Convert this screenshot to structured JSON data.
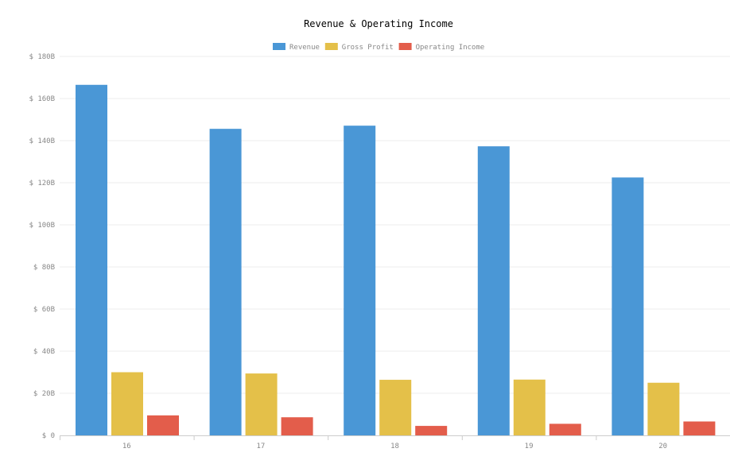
{
  "chart_data": {
    "type": "bar",
    "title": "Revenue & Operating Income",
    "categories": [
      "16",
      "17",
      "18",
      "19",
      "20"
    ],
    "series": [
      {
        "name": "Revenue",
        "color": "#4a97d6",
        "values": [
          166.5,
          145.6,
          147.1,
          137.3,
          122.5
        ]
      },
      {
        "name": "Gross Profit",
        "color": "#e4c049",
        "values": [
          30.0,
          29.4,
          26.4,
          26.5,
          25.0
        ]
      },
      {
        "name": "Operating Income",
        "color": "#e35d4b",
        "values": [
          9.5,
          8.6,
          4.5,
          5.5,
          6.6
        ]
      }
    ],
    "y_ticks": [
      "$ 0",
      "$ 20B",
      "$ 40B",
      "$ 60B",
      "$ 80B",
      "$ 100B",
      "$ 120B",
      "$ 140B",
      "$ 160B",
      "$ 180B"
    ],
    "ylim": [
      0,
      180
    ],
    "ytick_step": 20,
    "xlabel": "",
    "ylabel": "",
    "grid": true,
    "legend_position": "top-center"
  }
}
